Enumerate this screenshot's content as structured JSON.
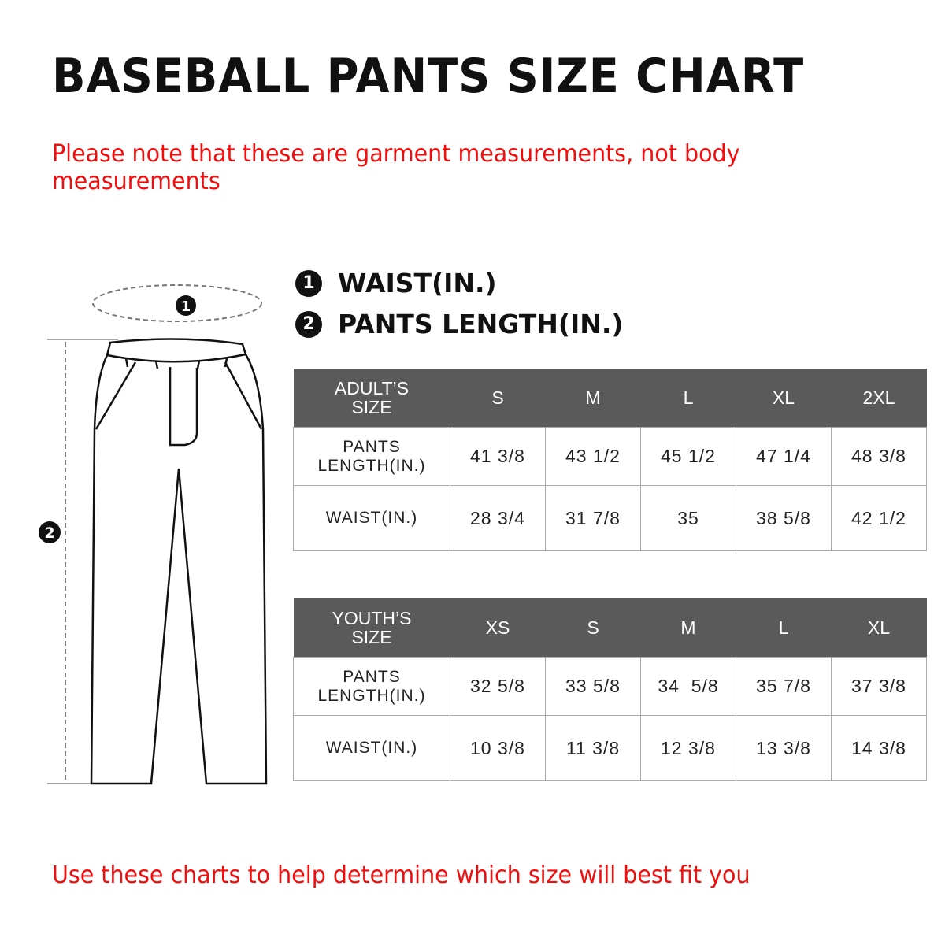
{
  "title": "BASEBALL PANTS SIZE CHART",
  "note_top": "Please note that these are garment measurements, not body measurements",
  "note_top_lines": [
    "Please note that these are garment measurements, not body",
    "measurements"
  ],
  "legend": [
    {
      "num": "1",
      "label": "WAIST(IN.)"
    },
    {
      "num": "2",
      "label": "PANTS LENGTH(IN.)"
    }
  ],
  "diagram": {
    "marker1": "1",
    "marker2": "2"
  },
  "adult": {
    "header": [
      "ADULT’S",
      "SIZE"
    ],
    "sizes": [
      "S",
      "M",
      "L",
      "XL",
      "2XL"
    ],
    "rows": [
      {
        "label": [
          "PANTS",
          "LENGTH(IN.)"
        ],
        "values": [
          "41 3/8",
          "43 1/2",
          "45 1/2",
          "47 1/4",
          "48 3/8"
        ]
      },
      {
        "label": [
          "WAIST(IN.)"
        ],
        "values": [
          "28 3/4",
          "31 7/8",
          "35",
          "38 5/8",
          "42 1/2"
        ]
      }
    ]
  },
  "youth": {
    "header": [
      "YOUTH’S",
      "SIZE"
    ],
    "sizes": [
      "XS",
      "S",
      "M",
      "L",
      "XL"
    ],
    "rows": [
      {
        "label": [
          "PANTS",
          "LENGTH(IN.)"
        ],
        "values": [
          "32 5/8",
          "33 5/8",
          "34  5/8",
          "35 7/8",
          "37 3/8"
        ]
      },
      {
        "label": [
          "WAIST(IN.)"
        ],
        "values": [
          "10 3/8",
          "11 3/8",
          "12 3/8",
          "13 3/8",
          "14 3/8"
        ]
      }
    ]
  },
  "note_bottom": "Use these charts to help determine which size will best fit you",
  "colors": {
    "note": "#f20d0d",
    "header_bg": "#5a5a5a",
    "border": "#aaaaaa"
  }
}
